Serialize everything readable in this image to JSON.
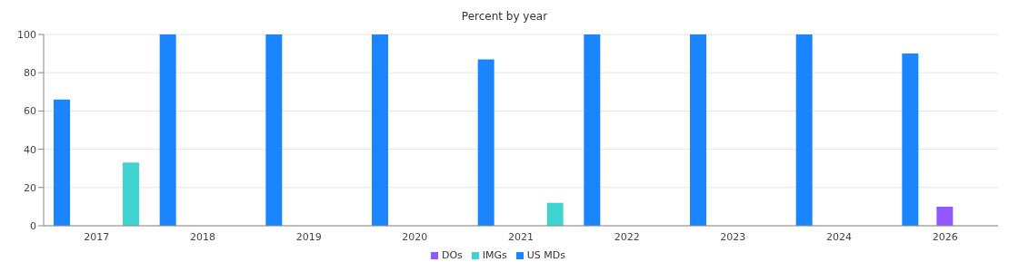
{
  "chart_data": {
    "type": "bar",
    "title": "Percent by year",
    "categories": [
      "2017",
      "2018",
      "2019",
      "2020",
      "2021",
      "2022",
      "2023",
      "2024",
      "2026"
    ],
    "series": [
      {
        "name": "US MDs",
        "color": "#1a85ff",
        "values": [
          66,
          100,
          100,
          100,
          87,
          100,
          100,
          100,
          90
        ]
      },
      {
        "name": "DOs",
        "color": "#9257ff",
        "values": [
          null,
          null,
          null,
          null,
          null,
          null,
          null,
          null,
          10
        ]
      },
      {
        "name": "IMGs",
        "color": "#3fd4d0",
        "values": [
          33,
          null,
          null,
          null,
          12,
          null,
          null,
          null,
          null
        ]
      }
    ],
    "ylim": [
      0,
      100
    ],
    "yticks": [
      0,
      20,
      40,
      60,
      80,
      100
    ],
    "grid": "y",
    "legend": "bottom"
  }
}
